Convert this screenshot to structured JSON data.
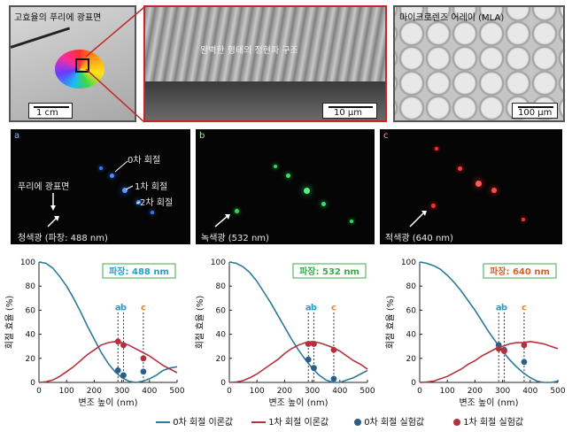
{
  "top_panels": {
    "left": {
      "title": "고효율의 푸리에 광표면",
      "scale": "1 cm"
    },
    "middle": {
      "title": "완벽한 형태의 정현파 구조",
      "scale": "10 μm"
    },
    "right": {
      "title": "마이크로렌즈 어레이 (MLA)",
      "scale": "100 μm"
    }
  },
  "dark_panels": [
    {
      "letter": "a",
      "caption": "청색광 (파장: 488 nm)",
      "color": "#2f7bff",
      "annotations": [
        "푸리에 광표면",
        "0차 회절",
        "1차 회절",
        "2차 회절"
      ]
    },
    {
      "letter": "b",
      "caption": "녹색광 (532 nm)",
      "color": "#2fd85a",
      "annotations": []
    },
    {
      "letter": "c",
      "caption": "적색광 (640 nm)",
      "color": "#ff2a2a",
      "annotations": []
    }
  ],
  "chart_data": [
    {
      "type": "line",
      "title": "파장: 488 nm",
      "title_color": "#1aa3c8",
      "xlabel": "변조 높이 (nm)",
      "ylabel": "회절 효율 (%)",
      "xlim": [
        0,
        500
      ],
      "ylim": [
        0,
        100
      ],
      "xticks": [
        0,
        100,
        200,
        300,
        400,
        500
      ],
      "yticks": [
        0,
        20,
        40,
        60,
        80,
        100
      ],
      "markers": [
        {
          "label": "a",
          "x": 286,
          "color": "#1aa3c8"
        },
        {
          "label": "b",
          "x": 306,
          "color": "#1aa3c8"
        },
        {
          "label": "c",
          "x": 378,
          "color": "#e08a2a"
        }
      ],
      "series": [
        {
          "name": "0차 회절 이론값",
          "color": "#2a7a9a",
          "x": [
            0,
            25,
            50,
            75,
            100,
            125,
            150,
            175,
            200,
            225,
            250,
            275,
            300,
            325,
            350,
            375,
            400,
            425,
            450,
            475,
            500
          ],
          "values": [
            100,
            99,
            95,
            88,
            80,
            70,
            59,
            47,
            36,
            25,
            16,
            9,
            4,
            1,
            0,
            1,
            3,
            6,
            10,
            12,
            13
          ]
        },
        {
          "name": "1차 회절 이론값",
          "color": "#b5303a",
          "x": [
            0,
            25,
            50,
            75,
            100,
            125,
            150,
            175,
            200,
            225,
            250,
            275,
            300,
            325,
            350,
            375,
            400,
            425,
            450,
            475,
            500
          ],
          "values": [
            0,
            0.5,
            2,
            5,
            9,
            13,
            18,
            23,
            27,
            31,
            33,
            34,
            33,
            31,
            28,
            25,
            22,
            18,
            14,
            11,
            8
          ]
        },
        {
          "name": "0차 회절 실험값",
          "color": "#2a5f8a",
          "marker": "dot",
          "x": [
            286,
            306,
            378
          ],
          "values": [
            10,
            6,
            9
          ]
        },
        {
          "name": "1차 회절 실험값",
          "color": "#b5303a",
          "marker": "dot",
          "x": [
            286,
            306,
            378
          ],
          "values": [
            34,
            31,
            20
          ]
        }
      ]
    },
    {
      "type": "line",
      "title": "파장: 532 nm",
      "title_color": "#3aaa4a",
      "xlabel": "변조 높이 (nm)",
      "ylabel": "회절 효율 (%)",
      "xlim": [
        0,
        500
      ],
      "ylim": [
        0,
        100
      ],
      "xticks": [
        0,
        100,
        200,
        300,
        400,
        500
      ],
      "yticks": [
        0,
        20,
        40,
        60,
        80,
        100
      ],
      "markers": [
        {
          "label": "a",
          "x": 286,
          "color": "#1aa3c8"
        },
        {
          "label": "b",
          "x": 306,
          "color": "#1aa3c8"
        },
        {
          "label": "c",
          "x": 378,
          "color": "#e08a2a"
        }
      ],
      "series": [
        {
          "name": "0차 회절 이론값",
          "color": "#2a7a9a",
          "x": [
            0,
            25,
            50,
            75,
            100,
            125,
            150,
            175,
            200,
            225,
            250,
            275,
            300,
            325,
            350,
            375,
            400,
            425,
            450,
            475,
            500
          ],
          "values": [
            100,
            99,
            96,
            91,
            84,
            75,
            66,
            56,
            46,
            36,
            27,
            19,
            12,
            6,
            2,
            0,
            0,
            2,
            4,
            7,
            10
          ]
        },
        {
          "name": "1차 회절 이론값",
          "color": "#b5303a",
          "x": [
            0,
            25,
            50,
            75,
            100,
            125,
            150,
            175,
            200,
            225,
            250,
            275,
            300,
            325,
            350,
            375,
            400,
            425,
            450,
            475,
            500
          ],
          "values": [
            0,
            0.4,
            1.5,
            4,
            7,
            11,
            15,
            19,
            24,
            28,
            31,
            33,
            34,
            33,
            31,
            29,
            26,
            22,
            18,
            15,
            11
          ]
        },
        {
          "name": "0차 회절 실험값",
          "color": "#2a5f8a",
          "marker": "dot",
          "x": [
            286,
            306,
            378
          ],
          "values": [
            19,
            12,
            3
          ]
        },
        {
          "name": "1차 회절 실험값",
          "color": "#b5303a",
          "marker": "dot",
          "x": [
            286,
            306,
            378
          ],
          "values": [
            32,
            32,
            27
          ]
        }
      ]
    },
    {
      "type": "line",
      "title": "파장: 640 nm",
      "title_color": "#d2622a",
      "xlabel": "변조 높이 (nm)",
      "ylabel": "회절 효율 (%)",
      "xlim": [
        0,
        500
      ],
      "ylim": [
        0,
        100
      ],
      "xticks": [
        0,
        100,
        200,
        300,
        400,
        500
      ],
      "yticks": [
        0,
        20,
        40,
        60,
        80,
        100
      ],
      "markers": [
        {
          "label": "a",
          "x": 286,
          "color": "#1aa3c8"
        },
        {
          "label": "b",
          "x": 306,
          "color": "#1aa3c8"
        },
        {
          "label": "c",
          "x": 378,
          "color": "#e08a2a"
        }
      ],
      "series": [
        {
          "name": "0차 회절 이론값",
          "color": "#2a7a9a",
          "x": [
            0,
            25,
            50,
            75,
            100,
            125,
            150,
            175,
            200,
            225,
            250,
            275,
            300,
            325,
            350,
            375,
            400,
            425,
            450,
            475,
            500
          ],
          "values": [
            100,
            99,
            97,
            94,
            89,
            83,
            76,
            68,
            60,
            51,
            42,
            34,
            26,
            19,
            13,
            8,
            4,
            1,
            0,
            0,
            1
          ]
        },
        {
          "name": "1차 회절 이론값",
          "color": "#b5303a",
          "x": [
            0,
            25,
            50,
            75,
            100,
            125,
            150,
            175,
            200,
            225,
            250,
            275,
            300,
            325,
            350,
            375,
            400,
            425,
            450,
            475,
            500
          ],
          "values": [
            0,
            0.3,
            1,
            3,
            5,
            8,
            11,
            15,
            18,
            22,
            25,
            28,
            30,
            32,
            33,
            33,
            34,
            33,
            32,
            30,
            28
          ]
        },
        {
          "name": "0차 회절 실험값",
          "color": "#2a5f8a",
          "marker": "dot",
          "x": [
            286,
            306,
            378
          ],
          "values": [
            31,
            27,
            17
          ]
        },
        {
          "name": "1차 회절 실험값",
          "color": "#b5303a",
          "marker": "dot",
          "x": [
            286,
            306,
            378
          ],
          "values": [
            28,
            26,
            31
          ]
        }
      ]
    }
  ],
  "legend": [
    {
      "label": "0차 회절 이론값",
      "kind": "line",
      "color": "#2a7a9a"
    },
    {
      "label": "1차 회절 이론값",
      "kind": "line",
      "color": "#b5303a"
    },
    {
      "label": "0차 회절 실험값",
      "kind": "dot",
      "color": "#2a5f8a"
    },
    {
      "label": "1차 회절 실험값",
      "kind": "dot",
      "color": "#b5303a"
    }
  ]
}
